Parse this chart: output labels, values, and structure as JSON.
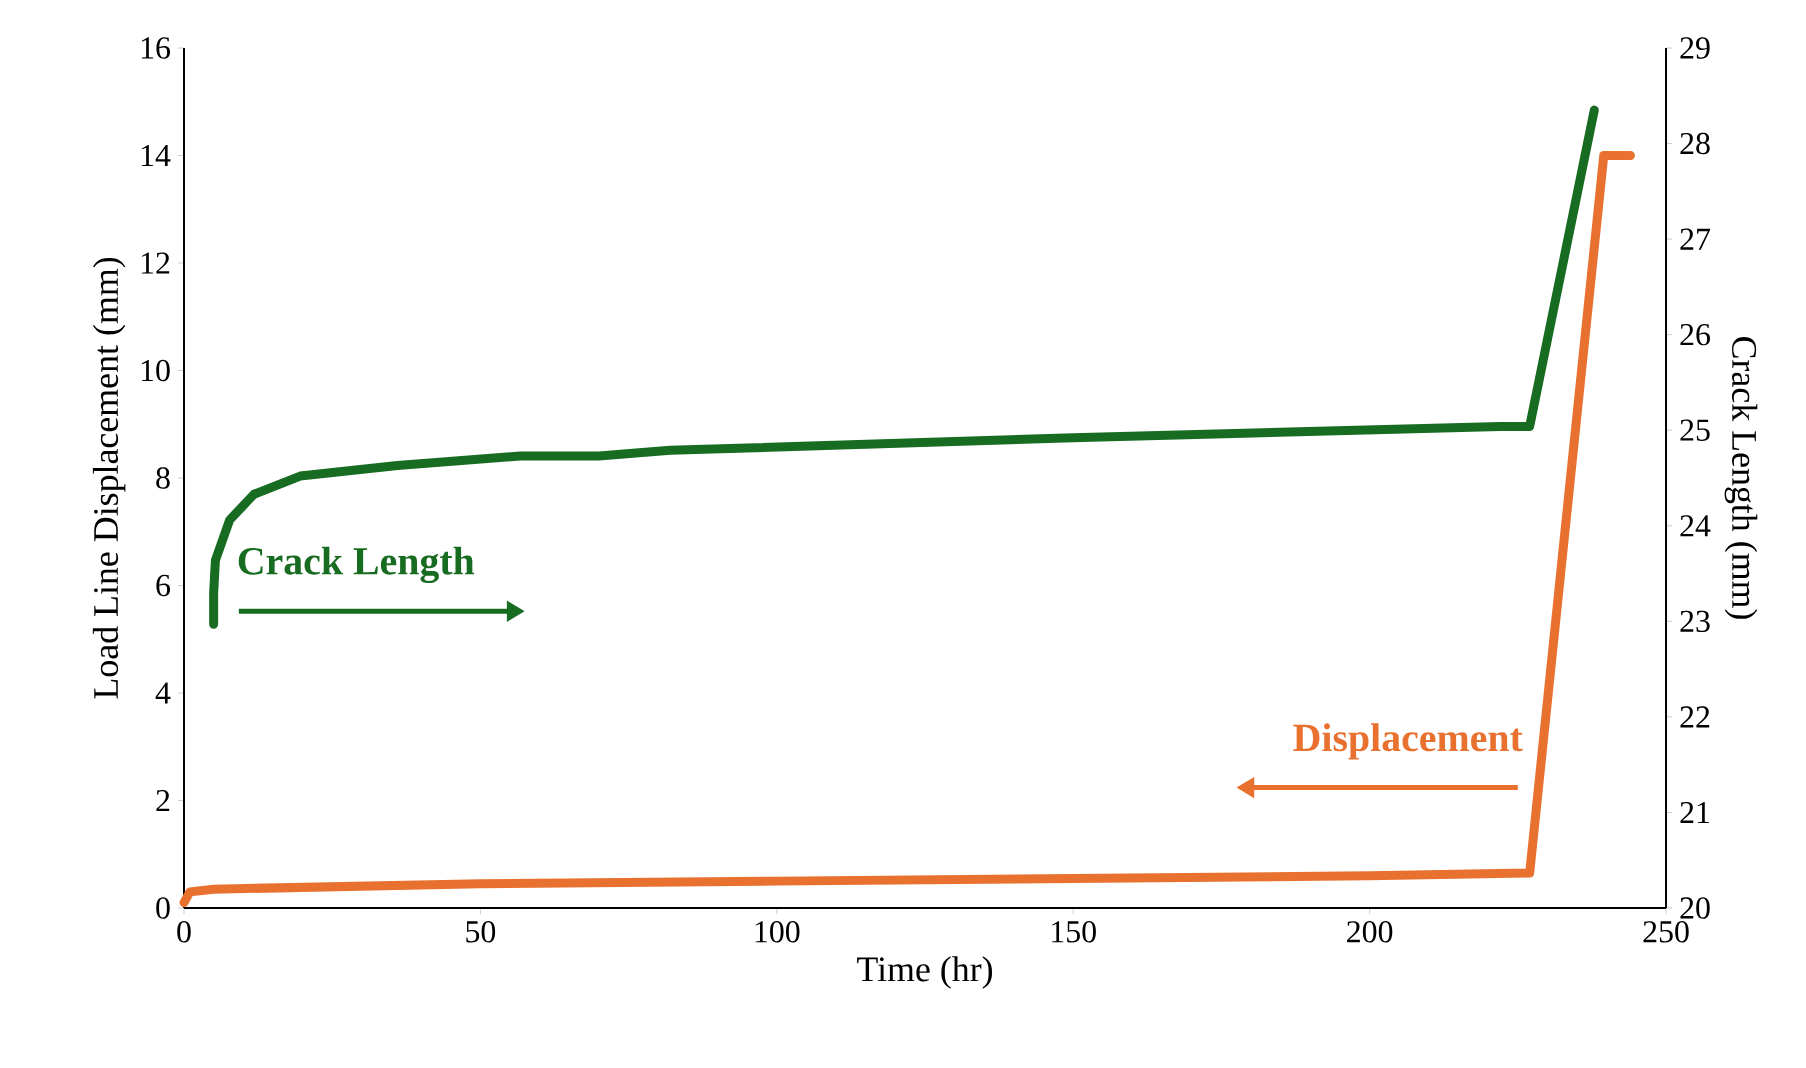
{
  "chart_data": {
    "type": "line",
    "xlabel": "Time (hr)",
    "ylabel": "Load Line Displacement (mm)",
    "y2label": "Crack Length (mm)",
    "xlim": [
      0,
      250
    ],
    "xticks": [
      0,
      50,
      100,
      150,
      200,
      250
    ],
    "ylim": [
      0,
      16
    ],
    "yticks": [
      0,
      2,
      4,
      6,
      8,
      10,
      12,
      14,
      16
    ],
    "y2lim": [
      20,
      29
    ],
    "y2ticks": [
      20,
      21,
      22,
      23,
      24,
      25,
      26,
      27,
      28,
      29
    ],
    "series": [
      {
        "name": "Displacement",
        "color": "#e87130",
        "axis": "y",
        "x": [
          0,
          1,
          5,
          50,
          100,
          150,
          200,
          227,
          239.5,
          244
        ],
        "values": [
          0.1,
          0.3,
          0.35,
          0.45,
          0.5,
          0.55,
          0.6,
          0.65,
          14.0,
          14.0
        ]
      },
      {
        "name": "Crack Length",
        "color": "#186c22",
        "axis": "y2",
        "x": [
          5,
          5,
          5.3,
          7.7,
          11.8,
          19.6,
          36,
          56.7,
          70,
          82,
          150,
          222,
          227,
          237.9
        ],
        "values": [
          22.97,
          23.3,
          23.64,
          24.06,
          24.33,
          24.52,
          24.63,
          24.73,
          24.73,
          24.79,
          24.92,
          25.04,
          25.04,
          28.35
        ]
      }
    ],
    "grid": false,
    "marker": "none",
    "line_style": "solid"
  }
}
